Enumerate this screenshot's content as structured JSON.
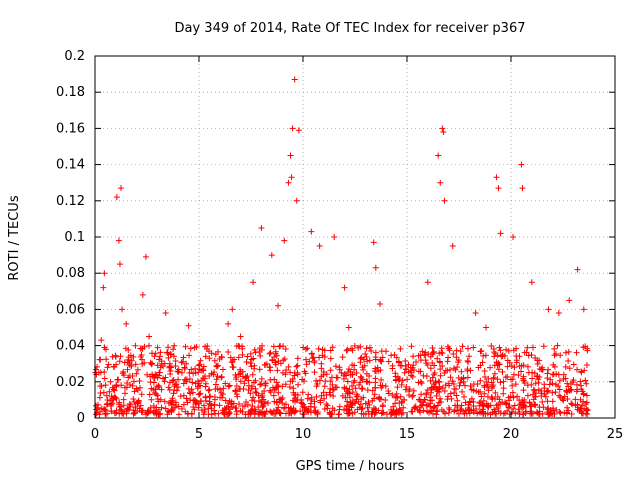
{
  "chart_data": {
    "type": "scatter",
    "title": "Day 349 of 2014, Rate Of TEC Index for receiver p367",
    "xlabel": "GPS time / hours",
    "ylabel": "ROTI / TECUs",
    "xlim": [
      0,
      25
    ],
    "ylim": [
      0,
      0.2
    ],
    "x_ticks": [
      0,
      5,
      10,
      15,
      20,
      25
    ],
    "x_tick_labels": [
      "0",
      "5",
      "10",
      "15",
      "20",
      "25"
    ],
    "y_ticks": [
      0,
      0.02,
      0.04,
      0.06,
      0.08,
      0.1,
      0.12,
      0.14,
      0.16,
      0.18,
      0.2
    ],
    "y_tick_labels": [
      "0",
      "0.02",
      "0.04",
      "0.06",
      "0.08",
      "0.1",
      "0.12",
      "0.14",
      "0.16",
      "0.18",
      "0.2"
    ],
    "grid": true,
    "marker": "+",
    "series_color": "#ff0000",
    "series": [
      {
        "name": "ROTI",
        "points": [
          [
            0.3,
            0.043
          ],
          [
            0.4,
            0.072
          ],
          [
            0.45,
            0.08
          ],
          [
            0.6,
            0.028
          ],
          [
            0.8,
            0.012
          ],
          [
            1.05,
            0.122
          ],
          [
            1.15,
            0.098
          ],
          [
            1.2,
            0.085
          ],
          [
            1.25,
            0.127
          ],
          [
            1.3,
            0.06
          ],
          [
            1.5,
            0.052
          ],
          [
            2.3,
            0.068
          ],
          [
            2.45,
            0.089
          ],
          [
            2.6,
            0.045
          ],
          [
            3.4,
            0.058
          ],
          [
            3.6,
            0.03
          ],
          [
            4.5,
            0.051
          ],
          [
            5.2,
            0.022
          ],
          [
            6.4,
            0.052
          ],
          [
            6.6,
            0.06
          ],
          [
            7.0,
            0.045
          ],
          [
            7.6,
            0.075
          ],
          [
            8.0,
            0.105
          ],
          [
            8.5,
            0.09
          ],
          [
            8.8,
            0.062
          ],
          [
            9.1,
            0.098
          ],
          [
            9.3,
            0.13
          ],
          [
            9.4,
            0.145
          ],
          [
            9.45,
            0.133
          ],
          [
            9.5,
            0.16
          ],
          [
            9.6,
            0.187
          ],
          [
            9.7,
            0.12
          ],
          [
            9.8,
            0.159
          ],
          [
            10.4,
            0.103
          ],
          [
            10.8,
            0.095
          ],
          [
            11.5,
            0.1
          ],
          [
            12.0,
            0.072
          ],
          [
            12.2,
            0.05
          ],
          [
            13.4,
            0.097
          ],
          [
            13.5,
            0.083
          ],
          [
            13.7,
            0.063
          ],
          [
            15.2,
            0.025
          ],
          [
            16.0,
            0.075
          ],
          [
            16.5,
            0.145
          ],
          [
            16.6,
            0.13
          ],
          [
            16.7,
            0.16
          ],
          [
            16.75,
            0.158
          ],
          [
            16.8,
            0.12
          ],
          [
            17.2,
            0.095
          ],
          [
            18.3,
            0.058
          ],
          [
            18.8,
            0.05
          ],
          [
            19.3,
            0.133
          ],
          [
            19.4,
            0.127
          ],
          [
            19.5,
            0.102
          ],
          [
            20.1,
            0.1
          ],
          [
            20.5,
            0.14
          ],
          [
            20.55,
            0.127
          ],
          [
            21.0,
            0.075
          ],
          [
            21.8,
            0.06
          ],
          [
            22.3,
            0.058
          ],
          [
            22.8,
            0.065
          ],
          [
            23.2,
            0.082
          ],
          [
            23.5,
            0.06
          ]
        ],
        "baseline_band": {
          "x_range": [
            0,
            23.7
          ],
          "y_range": [
            0.002,
            0.04
          ],
          "description": "dense cluster of low ROTI values"
        }
      }
    ]
  }
}
